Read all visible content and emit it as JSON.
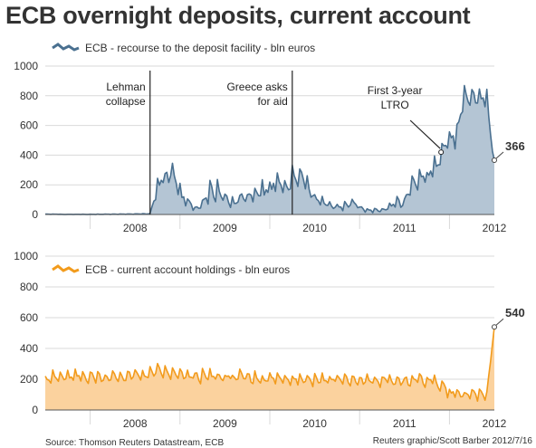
{
  "title": "ECB overnight deposits, current account",
  "colors": {
    "deposit_line": "#4a7090",
    "deposit_fill": "#b4c5d4",
    "current_line": "#f29b1c",
    "current_fill": "#fbd29e",
    "grid": "#d9d9d9",
    "axis": "#555555",
    "event_line": "#222222"
  },
  "footer": {
    "source": "Source: Thomson Reuters Datastream, ECB",
    "credit": "Reuters graphic/Scott Barber 2012/7/16"
  },
  "chart_data": [
    {
      "type": "area",
      "legend": "ECB - recourse to the deposit facility - bln euros",
      "legend_position": "top-left",
      "x_range": [
        "2007-07",
        "2012-07"
      ],
      "ylim": [
        0,
        1000
      ],
      "yticks": [
        0,
        200,
        400,
        600,
        800,
        1000
      ],
      "yticklabels": [
        "0",
        "200",
        "400",
        "600",
        "800",
        "1000"
      ],
      "x_labels": [
        "2008",
        "2009",
        "2010",
        "2011",
        "2012"
      ],
      "grid": true,
      "events": [
        {
          "date": "2008-09",
          "label_lines": [
            "Lehman",
            "collapse"
          ]
        },
        {
          "date": "2010-04",
          "label_lines": [
            "Greece asks",
            "for aid"
          ]
        }
      ],
      "annotations": [
        {
          "date": "2011-12",
          "value": 420,
          "label_lines": [
            "First 3-year",
            "LTRO"
          ]
        }
      ],
      "end_label": "366",
      "series": [
        {
          "x": [
            "2007-07",
            "2007-10",
            "2008-01",
            "2008-04",
            "2008-07",
            "2008-09",
            "2008-10",
            "2008-11",
            "2008-12",
            "2009-01",
            "2009-02",
            "2009-03",
            "2009-04",
            "2009-05",
            "2009-06",
            "2009-07",
            "2009-08",
            "2009-09",
            "2009-10",
            "2009-11",
            "2009-12",
            "2010-01",
            "2010-02",
            "2010-03",
            "2010-04",
            "2010-05",
            "2010-06",
            "2010-07",
            "2010-08",
            "2010-09",
            "2010-10",
            "2010-11",
            "2010-12",
            "2011-01",
            "2011-02",
            "2011-03",
            "2011-04",
            "2011-05",
            "2011-06",
            "2011-07",
            "2011-08",
            "2011-09",
            "2011-10",
            "2011-11",
            "2011-12",
            "2012-01",
            "2012-02",
            "2012-03",
            "2012-04",
            "2012-05",
            "2012-06",
            "2012-07"
          ],
          "y": [
            2,
            1,
            1,
            2,
            3,
            5,
            180,
            240,
            280,
            150,
            80,
            40,
            60,
            170,
            140,
            100,
            80,
            100,
            110,
            120,
            140,
            170,
            200,
            180,
            240,
            280,
            210,
            110,
            90,
            60,
            50,
            60,
            80,
            40,
            30,
            25,
            30,
            50,
            80,
            70,
            180,
            230,
            250,
            300,
            450,
            500,
            520,
            780,
            780,
            790,
            760,
            366
          ]
        }
      ]
    },
    {
      "type": "area",
      "legend": "ECB - current account holdings - bln euros",
      "legend_position": "top-left",
      "x_range": [
        "2007-07",
        "2012-07"
      ],
      "ylim": [
        0,
        1000
      ],
      "yticks": [
        0,
        200,
        400,
        600,
        800,
        1000
      ],
      "yticklabels": [
        "0",
        "200",
        "400",
        "600",
        "800",
        "1000"
      ],
      "x_labels": [
        "2008",
        "2009",
        "2010",
        "2011",
        "2012"
      ],
      "grid": true,
      "end_label": "540",
      "series": [
        {
          "x": [
            "2007-07",
            "2007-10",
            "2008-01",
            "2008-04",
            "2008-07",
            "2008-09",
            "2008-10",
            "2008-11",
            "2008-12",
            "2009-01",
            "2009-03",
            "2009-05",
            "2009-07",
            "2009-09",
            "2009-11",
            "2010-01",
            "2010-03",
            "2010-05",
            "2010-07",
            "2010-09",
            "2010-11",
            "2011-01",
            "2011-03",
            "2011-05",
            "2011-07",
            "2011-09",
            "2011-11",
            "2011-12",
            "2012-01",
            "2012-02",
            "2012-03",
            "2012-04",
            "2012-05",
            "2012-06",
            "2012-07"
          ],
          "y": [
            205,
            210,
            215,
            210,
            220,
            230,
            250,
            240,
            230,
            220,
            215,
            215,
            210,
            210,
            205,
            200,
            205,
            200,
            195,
            195,
            190,
            190,
            185,
            185,
            190,
            190,
            190,
            150,
            110,
            100,
            95,
            95,
            90,
            100,
            540
          ]
        }
      ]
    }
  ]
}
